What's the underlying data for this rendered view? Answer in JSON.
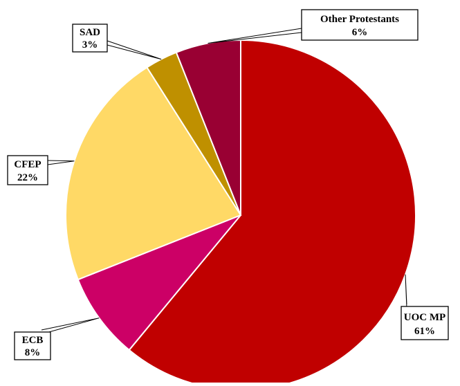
{
  "chart_data": {
    "type": "pie",
    "title": "",
    "start_angle_deg": 0,
    "direction": "clockwise",
    "slices": [
      {
        "label": "UOC MP",
        "value": 61,
        "value_text": "61%",
        "color": "#c00000"
      },
      {
        "label": "ECB",
        "value": 8,
        "value_text": "8%",
        "color": "#cc0066"
      },
      {
        "label": "CFEP",
        "value": 22,
        "value_text": "22%",
        "color": "#ffd966"
      },
      {
        "label": "SAD",
        "value": 3,
        "value_text": "3%",
        "color": "#bf9000"
      },
      {
        "label": "Other Protestants",
        "value": 6,
        "value_text": "6%",
        "color": "#990033"
      }
    ]
  }
}
